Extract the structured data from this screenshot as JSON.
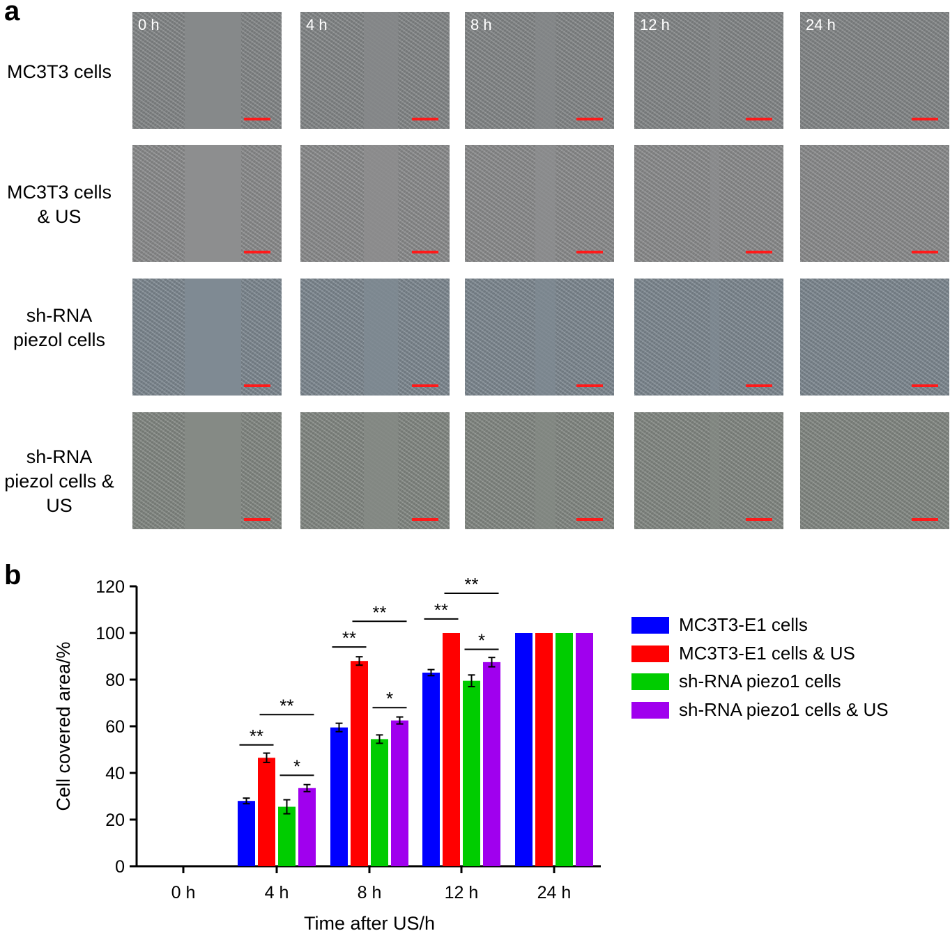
{
  "panel_a": {
    "letter": "a",
    "rows": [
      {
        "label": "MC3T3 cells",
        "tone": "#86898a",
        "gap": [
          0.35,
          0.73
        ]
      },
      {
        "label": "MC3T3 cells\n& US",
        "tone": "#8d8e8f",
        "gap": [
          0.35,
          0.73
        ]
      },
      {
        "label": "sh-RNA\npiezol cells",
        "tone": "#7f8a93",
        "gap": [
          0.35,
          0.73
        ]
      },
      {
        "label": "sh-RNA\npiezol cells &\nUS",
        "tone": "#858a85",
        "gap": [
          0.35,
          0.73
        ]
      }
    ],
    "time_labels": [
      "0 h",
      "4 h",
      "8 h",
      "12 h",
      "24 h"
    ],
    "gap_remaining": [
      1.0,
      0.6,
      0.35,
      0.15,
      0.0
    ],
    "scale_bar_color": "#ff1a1a"
  },
  "panel_b": {
    "letter": "b"
  },
  "chart_data": {
    "type": "bar",
    "categories": [
      "0 h",
      "4 h",
      "8 h",
      "12 h",
      "24 h"
    ],
    "xlabel": "Time after US/h",
    "ylabel": "Cell covered area/%",
    "ylim": [
      0,
      120
    ],
    "yticks": [
      0,
      20,
      40,
      60,
      80,
      100,
      120
    ],
    "series": [
      {
        "name": "MC3T3-E1 cells",
        "color": "#0000ff",
        "values": [
          0,
          28,
          59.5,
          83,
          100
        ],
        "errors": [
          0,
          1.2,
          1.8,
          1.3,
          0
        ]
      },
      {
        "name": "MC3T3-E1 cells & US",
        "color": "#ff0000",
        "values": [
          0,
          46.5,
          88,
          100,
          100
        ],
        "errors": [
          0,
          2,
          1.8,
          0,
          0
        ]
      },
      {
        "name": "sh-RNA piezo1 cells",
        "color": "#00cc00",
        "values": [
          0,
          25.5,
          54.5,
          79.5,
          100
        ],
        "errors": [
          0,
          3,
          1.8,
          2.5,
          0
        ]
      },
      {
        "name": "sh-RNA piezo1 cells & US",
        "color": "#a000ee",
        "values": [
          0,
          33.5,
          62.5,
          87.5,
          100
        ],
        "errors": [
          0,
          1.5,
          1.5,
          2,
          0
        ]
      }
    ],
    "significance": [
      {
        "category": 1,
        "from": 0,
        "to": 1,
        "label": "**",
        "level": 52
      },
      {
        "category": 1,
        "from": 1,
        "to": 3,
        "label": "**",
        "level": 65
      },
      {
        "category": 1,
        "from": 2,
        "to": 3,
        "label": "*",
        "level": 39
      },
      {
        "category": 2,
        "from": 0,
        "to": 1,
        "label": "**",
        "level": 94
      },
      {
        "category": 2,
        "from": 1,
        "to": 3,
        "label": "**",
        "level": 105
      },
      {
        "category": 2,
        "from": 2,
        "to": 3,
        "label": "*",
        "level": 68
      },
      {
        "category": 3,
        "from": 0,
        "to": 1,
        "label": "**",
        "level": 106
      },
      {
        "category": 3,
        "from": 1,
        "to": 3,
        "label": "**",
        "level": 117
      },
      {
        "category": 3,
        "from": 2,
        "to": 3,
        "label": "*",
        "level": 93
      }
    ],
    "legend_position": "right"
  }
}
